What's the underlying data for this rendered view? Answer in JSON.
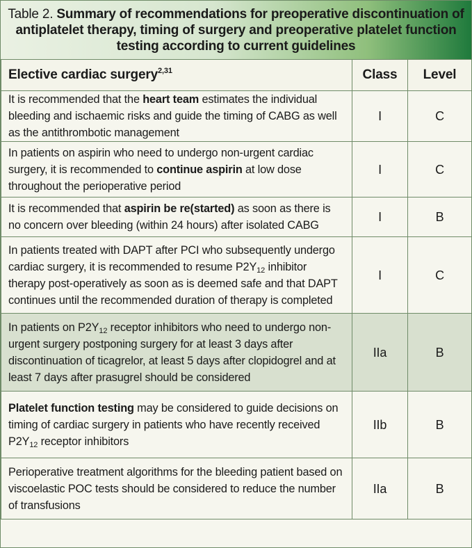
{
  "title": {
    "lead": "Table 2. ",
    "bold": "Summary of recommendations for preoperative discontinuation of antiplatelet therapy, timing of surgery and preoperative platelet function testing according to current guidelines"
  },
  "header": {
    "col1": "Elective cardiac surgery",
    "col1_refs": "2,31",
    "col2": "Class",
    "col3": "Level"
  },
  "rows": [
    {
      "p1": "It is recommended that the ",
      "b1": "heart team",
      "p2": " estimates the individual bleeding and ischaemic risks and guide the timing of CABG as well as the antithrombotic management",
      "class": "I",
      "level": "C"
    },
    {
      "p1": "In patients on aspirin who need to undergo non-urgent cardiac surgery, it is recommended to ",
      "b1": "continue aspirin",
      "p2": " at low dose throughout the perioperative period",
      "class": "I",
      "level": "C"
    },
    {
      "p1": "It is recommended that ",
      "b1": "aspirin be re(started)",
      "p2": " as soon as there is no concern over bleeding (within 24 hours) after isolated CABG",
      "class": "I",
      "level": "B"
    },
    {
      "p1": "In patients treated with DAPT after PCI who subsequently undergo cardiac surgery, it is recommended to resume P2Y",
      "sub": "12",
      "p2": " inhibitor therapy post-operatively as soon as is deemed safe and that DAPT continues until the recommended duration of therapy is completed",
      "class": "I",
      "level": "C"
    },
    {
      "p1": "In patients on P2Y",
      "sub": "12",
      "p2": " receptor inhibitors who need to undergo non-urgent surgery postponing surgery for at least 3 days after discontinuation of ticagrelor, at least 5 days after clopidogrel and at least 7 days after prasugrel should be considered",
      "class": "IIa",
      "level": "B"
    },
    {
      "b1": "Platelet function testing",
      "p1": " may be considered to guide decisions on timing of cardiac surgery in patients who have recently received P2Y",
      "sub": "12",
      "p2": " receptor inhibitors",
      "class": "IIb",
      "level": "B"
    },
    {
      "p1": "Perioperative  treatment algorithms for the bleeding patient based on viscoelastic POC tests should be considered to reduce the number of transfusions",
      "class": "IIa",
      "level": "B"
    }
  ]
}
